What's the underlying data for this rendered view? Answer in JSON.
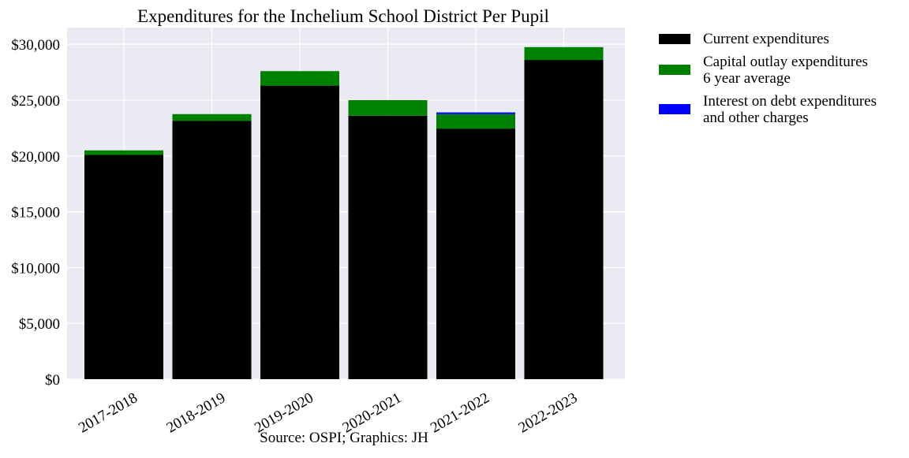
{
  "chart_data": {
    "type": "bar",
    "stacked": true,
    "title": "Expenditures for the Inchelium School District Per Pupil",
    "caption": "Source: OSPI; Graphics: JH",
    "xlabel": "",
    "ylabel": "",
    "categories": [
      "2017-2018",
      "2018-2019",
      "2019-2020",
      "2020-2021",
      "2021-2022",
      "2022-2023"
    ],
    "y_ticks": [
      0,
      5000,
      10000,
      15000,
      20000,
      25000,
      30000
    ],
    "y_tick_labels": [
      "$0",
      "$5,000",
      "$10,000",
      "$15,000",
      "$20,000",
      "$25,000",
      "$30,000"
    ],
    "ylim": [
      0,
      31500
    ],
    "grid": true,
    "legend_position": "outside-right-top",
    "series": [
      {
        "name": "Current expenditures",
        "color": "#000000",
        "values": [
          20100,
          23150,
          26300,
          23600,
          22450,
          28600
        ]
      },
      {
        "name": "Capital outlay expenditures\n6 year average",
        "color": "#008000",
        "values": [
          400,
          600,
          1300,
          1400,
          1300,
          1150
        ]
      },
      {
        "name": "Interest on debt expenditures\nand other charges",
        "color": "#0000ff",
        "values": [
          0,
          0,
          0,
          0,
          150,
          0
        ]
      }
    ]
  }
}
